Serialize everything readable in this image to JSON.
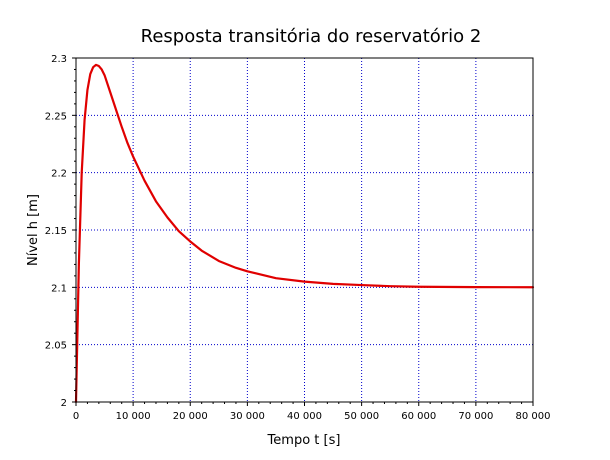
{
  "chart_data": {
    "type": "line",
    "title": "Resposta transitória do reservatório 2",
    "xlabel": "Tempo t [s]",
    "ylabel": "Nível h [m]",
    "xlim": [
      0,
      80000
    ],
    "ylim": [
      2.0,
      2.3
    ],
    "xticks": [
      0,
      10000,
      20000,
      30000,
      40000,
      50000,
      60000,
      70000,
      80000
    ],
    "xtick_labels": [
      "0",
      "10 000",
      "20 000",
      "30 000",
      "40 000",
      "50 000",
      "60 000",
      "70 000",
      "80 000"
    ],
    "yticks": [
      2.0,
      2.05,
      2.1,
      2.15,
      2.2,
      2.25,
      2.3
    ],
    "ytick_labels": [
      "2",
      "2.05",
      "2.1",
      "2.15",
      "2.2",
      "2.25",
      "2.3"
    ],
    "grid": true,
    "grid_color": "#0000cc",
    "line_color": "#e00000",
    "series": [
      {
        "x": [
          0,
          250,
          500,
          1000,
          1500,
          2000,
          2500,
          3000,
          3500,
          4000,
          4500,
          5000,
          6000,
          7000,
          8000,
          9000,
          10000,
          12000,
          14000,
          16000,
          18000,
          20000,
          22000,
          25000,
          28000,
          30000,
          35000,
          40000,
          45000,
          50000,
          55000,
          60000,
          70000,
          80000
        ],
        "y": [
          2.0,
          2.06,
          2.12,
          2.2,
          2.246,
          2.272,
          2.286,
          2.292,
          2.294,
          2.293,
          2.29,
          2.285,
          2.27,
          2.255,
          2.24,
          2.226,
          2.214,
          2.193,
          2.175,
          2.161,
          2.149,
          2.14,
          2.132,
          2.123,
          2.117,
          2.114,
          2.108,
          2.105,
          2.103,
          2.102,
          2.101,
          2.1005,
          2.1002,
          2.1001
        ]
      }
    ]
  }
}
